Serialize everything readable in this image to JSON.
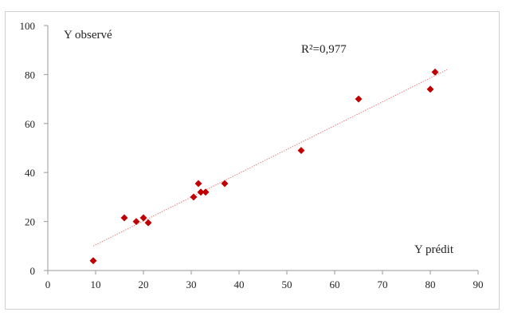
{
  "chart_data": {
    "type": "scatter",
    "title": "",
    "xlabel": "Y prédit",
    "ylabel": "Y observé",
    "xlim": [
      0,
      90
    ],
    "ylim": [
      0,
      100
    ],
    "xticks": [
      0,
      10,
      20,
      30,
      40,
      50,
      60,
      70,
      80,
      90
    ],
    "yticks": [
      0,
      20,
      40,
      60,
      80,
      100
    ],
    "grid": false,
    "legend": "none",
    "series": [
      {
        "color": "#c00000",
        "marker": "diamond",
        "points": [
          {
            "x": 9.5,
            "y": 4
          },
          {
            "x": 16,
            "y": 21.5
          },
          {
            "x": 18.5,
            "y": 20
          },
          {
            "x": 20,
            "y": 21.5
          },
          {
            "x": 21,
            "y": 19.5
          },
          {
            "x": 30.5,
            "y": 30
          },
          {
            "x": 31.5,
            "y": 35.5
          },
          {
            "x": 32,
            "y": 32
          },
          {
            "x": 33,
            "y": 32
          },
          {
            "x": 37,
            "y": 35.5
          },
          {
            "x": 53,
            "y": 49
          },
          {
            "x": 65,
            "y": 70
          },
          {
            "x": 80,
            "y": 74
          },
          {
            "x": 81,
            "y": 81
          }
        ]
      }
    ],
    "trendline": {
      "type": "linear",
      "color": "#e08080",
      "style": "dotted",
      "from": {
        "x": 9.5,
        "y": 10
      },
      "to": {
        "x": 83.5,
        "y": 82
      }
    },
    "annotations": [
      {
        "text": "R²=0,977"
      }
    ]
  }
}
